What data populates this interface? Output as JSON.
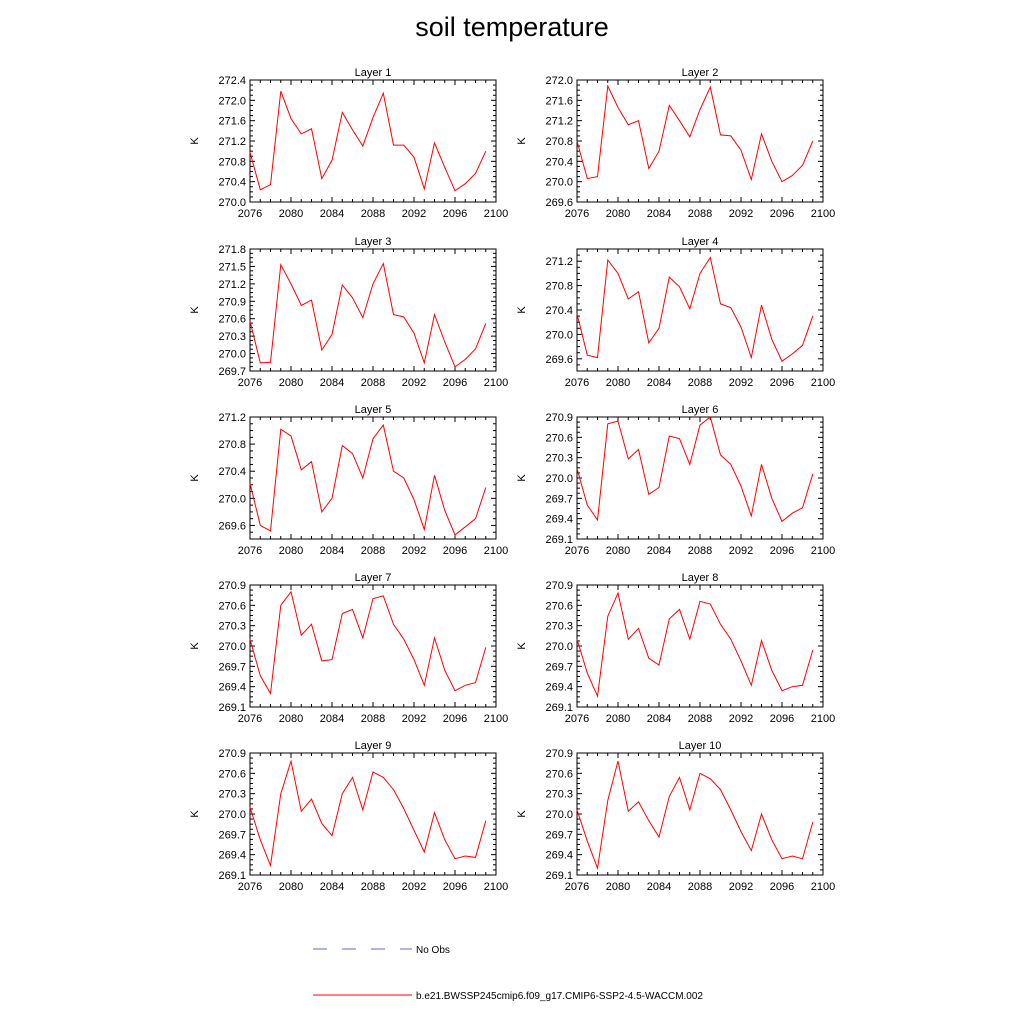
{
  "figure": {
    "title": "soil temperature",
    "legend": [
      {
        "label": "No Obs",
        "color": "#5a6ec8",
        "dash": "dashed"
      },
      {
        "label": "b.e21.BWSSP245cmip6.f09_g17.CMIP6-SSP2-4.5-WACCM.002",
        "color": "#ff0000",
        "dash": "solid"
      }
    ]
  },
  "chart_data": [
    {
      "type": "line",
      "title": "Layer 1",
      "ylabel": "K",
      "xlim": [
        2076,
        2100
      ],
      "ylim": [
        270.0,
        272.4
      ],
      "xticks": [
        "2076",
        "2080",
        "2084",
        "2088",
        "2092",
        "2096",
        "2100"
      ],
      "yticks": [
        "270.0",
        "270.4",
        "270.8",
        "271.2",
        "271.6",
        "272.0",
        "272.4"
      ],
      "series": [
        {
          "name": "b.e21.BWSSP245cmip6.f09_g17.CMIP6-SSP2-4.5-WACCM.002",
          "color": "#ff0000",
          "x": [
            2076,
            2077,
            2078,
            2079,
            2080,
            2081,
            2082,
            2083,
            2084,
            2085,
            2086,
            2087,
            2088,
            2089,
            2090,
            2091,
            2092,
            2093,
            2094,
            2095,
            2096,
            2097,
            2098,
            2099
          ],
          "values": [
            270.98,
            270.24,
            270.34,
            272.18,
            271.64,
            271.34,
            271.44,
            270.46,
            270.82,
            271.76,
            271.42,
            271.1,
            271.66,
            272.14,
            271.12,
            271.12,
            270.88,
            270.26,
            271.16,
            270.68,
            270.22,
            270.36,
            270.56,
            271.0
          ]
        }
      ]
    },
    {
      "type": "line",
      "title": "Layer 2",
      "ylabel": "K",
      "xlim": [
        2076,
        2100
      ],
      "ylim": [
        269.6,
        272.0
      ],
      "xticks": [
        "2076",
        "2080",
        "2084",
        "2088",
        "2092",
        "2096",
        "2100"
      ],
      "yticks": [
        "269.6",
        "270.0",
        "270.4",
        "270.8",
        "271.2",
        "271.6",
        "272.0"
      ],
      "series": [
        {
          "name": "b.e21.BWSSP245cmip6.f09_g17.CMIP6-SSP2-4.5-WACCM.002",
          "color": "#ff0000",
          "x": [
            2076,
            2077,
            2078,
            2079,
            2080,
            2081,
            2082,
            2083,
            2084,
            2085,
            2086,
            2087,
            2088,
            2089,
            2090,
            2091,
            2092,
            2093,
            2094,
            2095,
            2096,
            2097,
            2098,
            2099
          ],
          "values": [
            270.8,
            270.06,
            270.1,
            271.88,
            271.46,
            271.12,
            271.2,
            270.26,
            270.6,
            271.5,
            271.2,
            270.88,
            271.42,
            271.86,
            270.92,
            270.9,
            270.62,
            270.04,
            270.94,
            270.4,
            270.0,
            270.12,
            270.32,
            270.8
          ]
        }
      ]
    },
    {
      "type": "line",
      "title": "Layer 3",
      "ylabel": "K",
      "xlim": [
        2076,
        2100
      ],
      "ylim": [
        269.7,
        271.8
      ],
      "xticks": [
        "2076",
        "2080",
        "2084",
        "2088",
        "2092",
        "2096",
        "2100"
      ],
      "yticks": [
        "269.7",
        "270.0",
        "270.3",
        "270.6",
        "270.9",
        "271.2",
        "271.5",
        "271.8"
      ],
      "series": [
        {
          "name": "b.e21.BWSSP245cmip6.f09_g17.CMIP6-SSP2-4.5-WACCM.002",
          "color": "#ff0000",
          "x": [
            2076,
            2077,
            2078,
            2079,
            2080,
            2081,
            2082,
            2083,
            2084,
            2085,
            2086,
            2087,
            2088,
            2089,
            2090,
            2091,
            2092,
            2093,
            2094,
            2095,
            2096,
            2097,
            2098,
            2099
          ],
          "values": [
            270.56,
            269.84,
            269.85,
            271.53,
            271.2,
            270.83,
            270.92,
            270.06,
            270.33,
            271.18,
            270.96,
            270.62,
            271.2,
            271.55,
            270.67,
            270.63,
            270.35,
            269.84,
            270.67,
            270.2,
            269.77,
            269.9,
            270.08,
            270.52
          ]
        }
      ]
    },
    {
      "type": "line",
      "title": "Layer 4",
      "ylabel": "K",
      "xlim": [
        2076,
        2100
      ],
      "ylim": [
        269.4,
        271.4
      ],
      "xticks": [
        "2076",
        "2080",
        "2084",
        "2088",
        "2092",
        "2096",
        "2100"
      ],
      "yticks": [
        "269.6",
        "270.0",
        "270.4",
        "270.8",
        "271.2"
      ],
      "series": [
        {
          "name": "b.e21.BWSSP245cmip6.f09_g17.CMIP6-SSP2-4.5-WACCM.002",
          "color": "#ff0000",
          "x": [
            2076,
            2077,
            2078,
            2079,
            2080,
            2081,
            2082,
            2083,
            2084,
            2085,
            2086,
            2087,
            2088,
            2089,
            2090,
            2091,
            2092,
            2093,
            2094,
            2095,
            2096,
            2097,
            2098,
            2099
          ],
          "values": [
            270.34,
            269.66,
            269.62,
            271.22,
            271.0,
            270.58,
            270.7,
            269.86,
            270.1,
            270.94,
            270.78,
            270.42,
            271.0,
            271.26,
            270.5,
            270.44,
            270.12,
            269.62,
            270.48,
            269.92,
            269.56,
            269.68,
            269.82,
            270.3
          ]
        }
      ]
    },
    {
      "type": "line",
      "title": "Layer 5",
      "ylabel": "K",
      "xlim": [
        2076,
        2100
      ],
      "ylim": [
        269.4,
        271.2
      ],
      "xticks": [
        "2076",
        "2080",
        "2084",
        "2088",
        "2092",
        "2096",
        "2100"
      ],
      "yticks": [
        "269.6",
        "270.0",
        "270.4",
        "270.8",
        "271.2"
      ],
      "series": [
        {
          "name": "b.e21.BWSSP245cmip6.f09_g17.CMIP6-SSP2-4.5-WACCM.002",
          "color": "#ff0000",
          "x": [
            2076,
            2077,
            2078,
            2079,
            2080,
            2081,
            2082,
            2083,
            2084,
            2085,
            2086,
            2087,
            2088,
            2089,
            2090,
            2091,
            2092,
            2093,
            2094,
            2095,
            2096,
            2097,
            2098,
            2099
          ],
          "values": [
            270.22,
            269.6,
            269.52,
            271.02,
            270.92,
            270.42,
            270.54,
            269.8,
            270.0,
            270.78,
            270.66,
            270.3,
            270.88,
            271.08,
            270.4,
            270.3,
            269.98,
            269.54,
            270.34,
            269.82,
            269.46,
            269.58,
            269.7,
            270.16
          ]
        }
      ]
    },
    {
      "type": "line",
      "title": "Layer 6",
      "ylabel": "K",
      "xlim": [
        2076,
        2100
      ],
      "ylim": [
        269.1,
        270.9
      ],
      "xticks": [
        "2076",
        "2080",
        "2084",
        "2088",
        "2092",
        "2096",
        "2100"
      ],
      "yticks": [
        "269.1",
        "269.4",
        "269.7",
        "270.0",
        "270.3",
        "270.6",
        "270.9"
      ],
      "series": [
        {
          "name": "b.e21.BWSSP245cmip6.f09_g17.CMIP6-SSP2-4.5-WACCM.002",
          "color": "#ff0000",
          "x": [
            2076,
            2077,
            2078,
            2079,
            2080,
            2081,
            2082,
            2083,
            2084,
            2085,
            2086,
            2087,
            2088,
            2089,
            2090,
            2091,
            2092,
            2093,
            2094,
            2095,
            2096,
            2097,
            2098,
            2099
          ],
          "values": [
            270.14,
            269.6,
            269.38,
            270.8,
            270.84,
            270.28,
            270.42,
            269.76,
            269.86,
            270.62,
            270.58,
            270.2,
            270.78,
            270.9,
            270.34,
            270.2,
            269.88,
            269.44,
            270.2,
            269.7,
            269.36,
            269.48,
            269.56,
            270.06
          ]
        }
      ]
    },
    {
      "type": "line",
      "title": "Layer 7",
      "ylabel": "K",
      "xlim": [
        2076,
        2100
      ],
      "ylim": [
        269.1,
        270.9
      ],
      "xticks": [
        "2076",
        "2080",
        "2084",
        "2088",
        "2092",
        "2096",
        "2100"
      ],
      "yticks": [
        "269.1",
        "269.4",
        "269.7",
        "270.0",
        "270.3",
        "270.6",
        "270.9"
      ],
      "series": [
        {
          "name": "b.e21.BWSSP245cmip6.f09_g17.CMIP6-SSP2-4.5-WACCM.002",
          "color": "#ff0000",
          "x": [
            2076,
            2077,
            2078,
            2079,
            2080,
            2081,
            2082,
            2083,
            2084,
            2085,
            2086,
            2087,
            2088,
            2089,
            2090,
            2091,
            2092,
            2093,
            2094,
            2095,
            2096,
            2097,
            2098,
            2099
          ],
          "values": [
            270.1,
            269.56,
            269.3,
            270.6,
            270.8,
            270.16,
            270.32,
            269.78,
            269.8,
            270.48,
            270.54,
            270.12,
            270.7,
            270.74,
            270.32,
            270.1,
            269.8,
            269.42,
            270.12,
            269.64,
            269.34,
            269.42,
            269.46,
            269.98
          ]
        }
      ]
    },
    {
      "type": "line",
      "title": "Layer 8",
      "ylabel": "K",
      "xlim": [
        2076,
        2100
      ],
      "ylim": [
        269.1,
        270.9
      ],
      "xticks": [
        "2076",
        "2080",
        "2084",
        "2088",
        "2092",
        "2096",
        "2100"
      ],
      "yticks": [
        "269.1",
        "269.4",
        "269.7",
        "270.0",
        "270.3",
        "270.6",
        "270.9"
      ],
      "series": [
        {
          "name": "b.e21.BWSSP245cmip6.f09_g17.CMIP6-SSP2-4.5-WACCM.002",
          "color": "#ff0000",
          "x": [
            2076,
            2077,
            2078,
            2079,
            2080,
            2081,
            2082,
            2083,
            2084,
            2085,
            2086,
            2087,
            2088,
            2089,
            2090,
            2091,
            2092,
            2093,
            2094,
            2095,
            2096,
            2097,
            2098,
            2099
          ],
          "values": [
            270.1,
            269.6,
            269.26,
            270.44,
            270.78,
            270.1,
            270.26,
            269.82,
            269.72,
            270.4,
            270.54,
            270.1,
            270.66,
            270.62,
            270.32,
            270.1,
            269.78,
            269.42,
            270.08,
            269.64,
            269.34,
            269.4,
            269.42,
            269.94
          ]
        }
      ]
    },
    {
      "type": "line",
      "title": "Layer 9",
      "ylabel": "K",
      "xlim": [
        2076,
        2100
      ],
      "ylim": [
        269.1,
        270.9
      ],
      "xticks": [
        "2076",
        "2080",
        "2084",
        "2088",
        "2092",
        "2096",
        "2100"
      ],
      "yticks": [
        "269.1",
        "269.4",
        "269.7",
        "270.0",
        "270.3",
        "270.6",
        "270.9"
      ],
      "series": [
        {
          "name": "b.e21.BWSSP245cmip6.f09_g17.CMIP6-SSP2-4.5-WACCM.002",
          "color": "#ff0000",
          "x": [
            2076,
            2077,
            2078,
            2079,
            2080,
            2081,
            2082,
            2083,
            2084,
            2085,
            2086,
            2087,
            2088,
            2089,
            2090,
            2091,
            2092,
            2093,
            2094,
            2095,
            2096,
            2097,
            2098,
            2099
          ],
          "values": [
            270.1,
            269.62,
            269.24,
            270.3,
            270.78,
            270.04,
            270.22,
            269.86,
            269.68,
            270.3,
            270.54,
            270.06,
            270.62,
            270.54,
            270.36,
            270.08,
            269.76,
            269.44,
            270.02,
            269.62,
            269.34,
            269.38,
            269.36,
            269.9
          ]
        }
      ]
    },
    {
      "type": "line",
      "title": "Layer 10",
      "ylabel": "K",
      "xlim": [
        2076,
        2100
      ],
      "ylim": [
        269.1,
        270.9
      ],
      "xticks": [
        "2076",
        "2080",
        "2084",
        "2088",
        "2092",
        "2096",
        "2100"
      ],
      "yticks": [
        "269.1",
        "269.4",
        "269.7",
        "270.0",
        "270.3",
        "270.6",
        "270.9"
      ],
      "series": [
        {
          "name": "b.e21.BWSSP245cmip6.f09_g17.CMIP6-SSP2-4.5-WACCM.002",
          "color": "#ff0000",
          "x": [
            2076,
            2077,
            2078,
            2079,
            2080,
            2081,
            2082,
            2083,
            2084,
            2085,
            2086,
            2087,
            2088,
            2089,
            2090,
            2091,
            2092,
            2093,
            2094,
            2095,
            2096,
            2097,
            2098,
            2099
          ],
          "values": [
            270.06,
            269.6,
            269.2,
            270.2,
            270.78,
            270.04,
            270.18,
            269.9,
            269.66,
            270.26,
            270.54,
            270.06,
            270.6,
            270.52,
            270.36,
            270.06,
            269.74,
            269.46,
            270.0,
            269.62,
            269.34,
            269.38,
            269.34,
            269.88
          ]
        }
      ]
    }
  ]
}
